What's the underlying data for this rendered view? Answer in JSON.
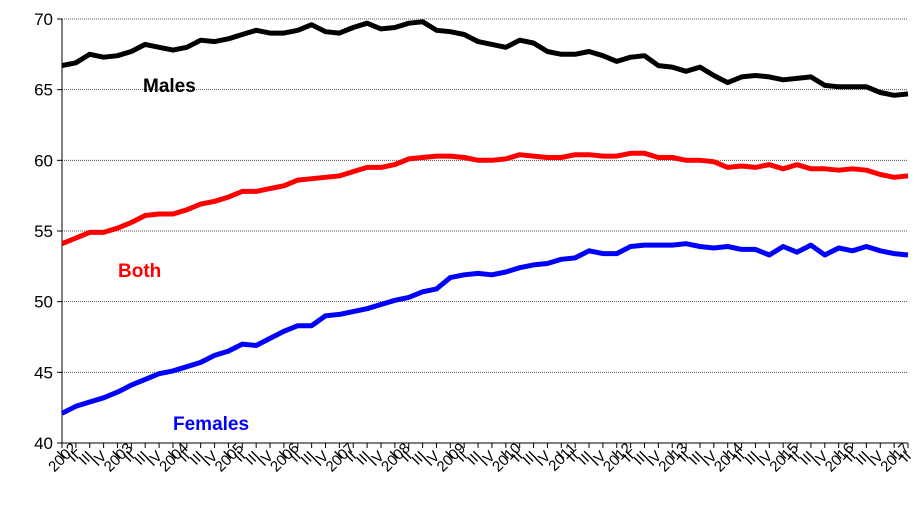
{
  "chart_data": {
    "type": "line",
    "categories": [
      "I",
      "II",
      "III",
      "IV",
      "I",
      "II",
      "III",
      "IV",
      "I",
      "II",
      "III",
      "IV",
      "I",
      "II",
      "III",
      "IV",
      "I",
      "II",
      "III",
      "IV",
      "I",
      "II",
      "III",
      "IV",
      "I",
      "II",
      "III",
      "IV",
      "I",
      "II",
      "III",
      "IV",
      "I",
      "II",
      "III",
      "IV",
      "I",
      "II",
      "III",
      "IV",
      "I",
      "II",
      "III",
      "IV",
      "I",
      "II",
      "III",
      "IV",
      "I",
      "II",
      "III",
      "IV",
      "I",
      "II",
      "III",
      "IV",
      "I",
      "II",
      "III",
      "IV",
      "I",
      "II"
    ],
    "years": [
      "2002",
      "2003",
      "2004",
      "2005",
      "2006",
      "2007",
      "2008",
      "2009",
      "2010",
      "2011",
      "2012",
      "2013",
      "2014",
      "2015",
      "2016",
      "2017"
    ],
    "series": [
      {
        "name": "Males",
        "color": "#000000",
        "values": [
          66.7,
          66.9,
          67.5,
          67.3,
          67.4,
          67.7,
          68.2,
          68.0,
          67.8,
          68.0,
          68.5,
          68.4,
          68.6,
          68.9,
          69.2,
          69.0,
          69.0,
          69.2,
          69.6,
          69.1,
          69.0,
          69.4,
          69.7,
          69.3,
          69.4,
          69.7,
          69.8,
          69.2,
          69.1,
          68.9,
          68.4,
          68.2,
          68.0,
          68.5,
          68.3,
          67.7,
          67.5,
          67.5,
          67.7,
          67.4,
          67.0,
          67.3,
          67.4,
          66.7,
          66.6,
          66.3,
          66.6,
          66.0,
          65.5,
          65.9,
          66.0,
          65.9,
          65.7,
          65.8,
          65.9,
          65.3,
          65.2,
          65.2,
          65.2,
          64.8,
          64.6,
          64.7
        ]
      },
      {
        "name": "Both",
        "color": "#ff0000",
        "values": [
          54.1,
          54.5,
          54.9,
          54.9,
          55.2,
          55.6,
          56.1,
          56.2,
          56.2,
          56.5,
          56.9,
          57.1,
          57.4,
          57.8,
          57.8,
          58.0,
          58.2,
          58.6,
          58.7,
          58.8,
          58.9,
          59.2,
          59.5,
          59.5,
          59.7,
          60.1,
          60.2,
          60.3,
          60.3,
          60.2,
          60.0,
          60.0,
          60.1,
          60.4,
          60.3,
          60.2,
          60.2,
          60.4,
          60.4,
          60.3,
          60.3,
          60.5,
          60.5,
          60.2,
          60.2,
          60.0,
          60.0,
          59.9,
          59.5,
          59.6,
          59.5,
          59.7,
          59.4,
          59.7,
          59.4,
          59.4,
          59.3,
          59.4,
          59.3,
          59.0,
          58.8,
          58.9
        ]
      },
      {
        "name": "Females",
        "color": "#0000ff",
        "values": [
          42.1,
          42.6,
          42.9,
          43.2,
          43.6,
          44.1,
          44.5,
          44.9,
          45.1,
          45.4,
          45.7,
          46.2,
          46.5,
          47.0,
          46.9,
          47.4,
          47.9,
          48.3,
          48.3,
          49.0,
          49.1,
          49.3,
          49.5,
          49.8,
          50.1,
          50.3,
          50.7,
          50.9,
          51.7,
          51.9,
          52.0,
          51.9,
          52.1,
          52.4,
          52.6,
          52.7,
          53.0,
          53.1,
          53.6,
          53.4,
          53.4,
          53.9,
          54.0,
          54.0,
          54.0,
          54.1,
          53.9,
          53.8,
          53.9,
          53.7,
          53.7,
          53.3,
          53.9,
          53.5,
          54.0,
          53.3,
          53.8,
          53.6,
          53.9,
          53.6,
          53.4,
          53.3
        ]
      }
    ],
    "ylim": [
      40,
      70
    ],
    "yticks": [
      40,
      45,
      50,
      55,
      60,
      65,
      70
    ],
    "grid": true
  }
}
